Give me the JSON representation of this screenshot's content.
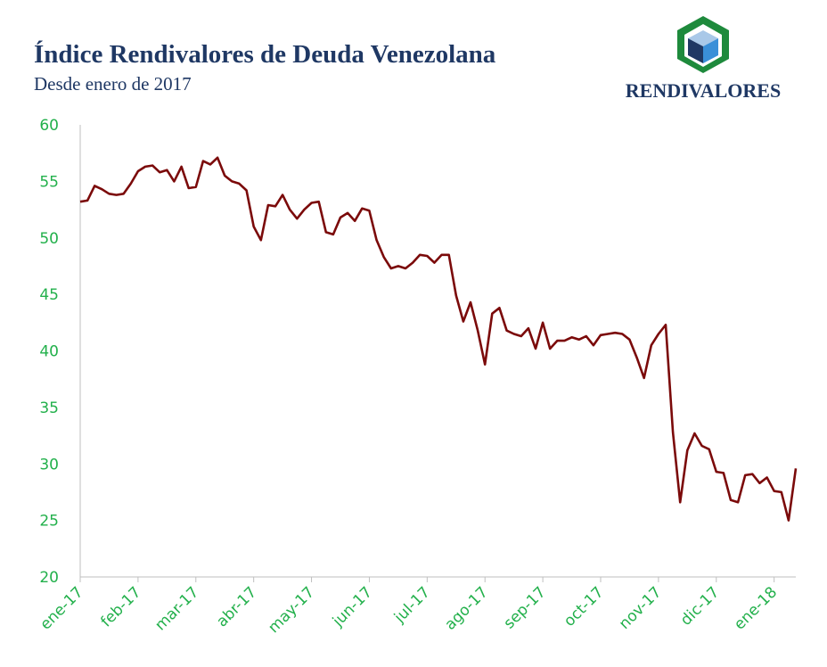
{
  "header": {
    "logo": "RENDIVALORES"
  },
  "chart_data": {
    "type": "line",
    "title": "Índice Rendivalores de Deuda Venezolana",
    "subtitle": "Desde enero de 2017",
    "categories": [
      "ene-17",
      null,
      null,
      null,
      null,
      null,
      null,
      null,
      "feb-17",
      null,
      null,
      null,
      null,
      null,
      null,
      null,
      "mar-17",
      null,
      null,
      null,
      null,
      null,
      null,
      null,
      "abr-17",
      null,
      null,
      null,
      null,
      null,
      null,
      null,
      "may-17",
      null,
      null,
      null,
      null,
      null,
      null,
      null,
      "jun-17",
      null,
      null,
      null,
      null,
      null,
      null,
      null,
      "jul-17",
      null,
      null,
      null,
      null,
      null,
      null,
      null,
      "ago-17",
      null,
      null,
      null,
      null,
      null,
      null,
      null,
      "sep-17",
      null,
      null,
      null,
      null,
      null,
      null,
      null,
      "oct-17",
      null,
      null,
      null,
      null,
      null,
      null,
      null,
      "nov-17",
      null,
      null,
      null,
      null,
      null,
      null,
      null,
      "dic-17",
      null,
      null,
      null,
      null,
      null,
      null,
      null,
      "ene-18",
      null,
      null,
      null
    ],
    "series": [
      {
        "name": "Índice Rendivalores",
        "color": "#7b0a0a",
        "values": [
          53.2,
          53.3,
          54.6,
          54.3,
          53.9,
          53.8,
          53.9,
          54.8,
          55.9,
          56.3,
          56.4,
          55.8,
          56.0,
          55.0,
          56.3,
          54.4,
          54.5,
          56.8,
          56.5,
          57.1,
          55.5,
          55.0,
          54.8,
          54.2,
          51.0,
          49.8,
          52.9,
          52.8,
          53.8,
          52.5,
          51.7,
          52.5,
          53.1,
          53.2,
          50.5,
          50.3,
          51.8,
          52.2,
          51.5,
          52.6,
          52.4,
          49.8,
          48.3,
          47.3,
          47.5,
          47.3,
          47.8,
          48.5,
          48.4,
          47.8,
          48.5,
          48.5,
          44.9,
          42.6,
          44.3,
          41.8,
          38.8,
          43.3,
          43.8,
          41.8,
          41.5,
          41.3,
          42.0,
          40.2,
          42.5,
          40.2,
          40.9,
          40.9,
          41.2,
          41.0,
          41.3,
          40.5,
          41.4,
          41.5,
          41.6,
          41.5,
          41.0,
          39.4,
          37.6,
          40.5,
          41.5,
          42.3,
          32.8,
          26.6,
          31.2,
          32.7,
          31.6,
          31.3,
          29.3,
          29.2,
          26.8,
          26.6,
          29.0,
          29.1,
          28.3,
          28.8,
          27.6,
          27.5,
          25.0,
          29.6
        ]
      }
    ],
    "ylim": [
      20,
      60
    ],
    "yticks": [
      20,
      25,
      30,
      35,
      40,
      45,
      50,
      55,
      60
    ],
    "tick_color": "#22b04b",
    "grid": false
  }
}
